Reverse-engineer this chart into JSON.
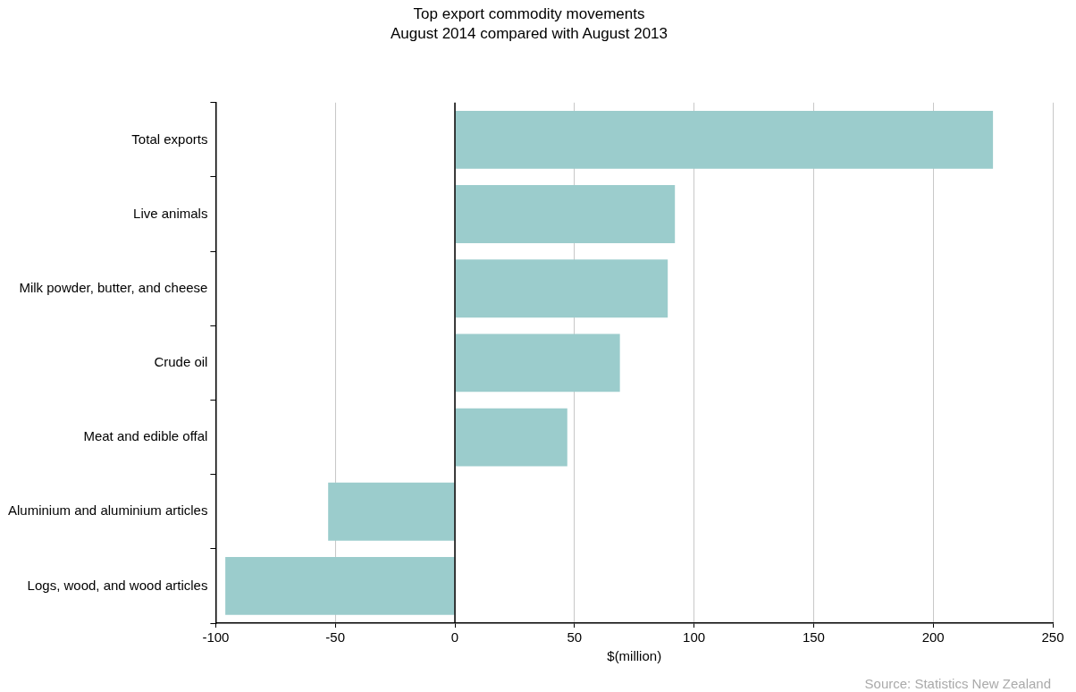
{
  "chart_data": {
    "type": "bar",
    "orientation": "horizontal",
    "title": "Top export commodity movements",
    "subtitle": "August 2014 compared with August 2013",
    "categories": [
      "Total exports",
      "Live animals",
      "Milk powder, butter, and cheese",
      "Crude oil",
      "Meat and edible offal",
      "Aluminium and aluminium articles",
      "Logs, wood, and wood articles"
    ],
    "values": [
      225,
      92,
      89,
      69,
      47,
      -53,
      -96
    ],
    "color": "#9bcccc",
    "xlabel": "$(million)",
    "xlim": [
      -100,
      250
    ],
    "xticks": [
      -100,
      -50,
      0,
      50,
      100,
      150,
      200,
      250
    ],
    "grid": "x",
    "ref_lines": [
      {
        "axis": "x",
        "value": 0,
        "color": "#000000"
      }
    ],
    "annotations": [
      "Source: Statistics New Zealand"
    ]
  }
}
